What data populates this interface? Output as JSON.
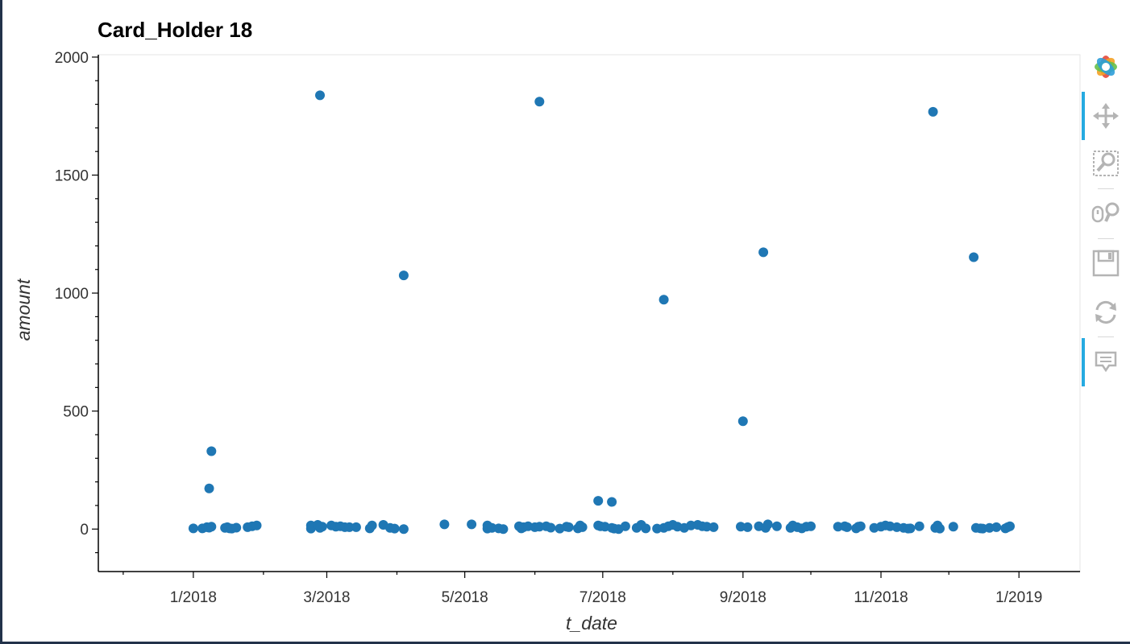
{
  "toolbar": {
    "items": [
      {
        "icon": "bokeh-logo-icon"
      },
      {
        "icon": "pan-icon",
        "active": true
      },
      {
        "icon": "box-zoom-icon"
      },
      {
        "icon": "wheel-zoom-icon"
      },
      {
        "icon": "save-icon"
      },
      {
        "icon": "reset-icon"
      },
      {
        "icon": "hover-icon",
        "active": true
      }
    ],
    "active_color": "#26aae1"
  },
  "chart_data": {
    "type": "scatter",
    "title": "Card_Holder 18",
    "xlabel": "t_date",
    "ylabel": "amount",
    "x_ticks": [
      "1/2018",
      "3/2018",
      "5/2018",
      "7/2018",
      "9/2018",
      "11/2018",
      "1/2019"
    ],
    "y_ticks": [
      "0",
      "500",
      "1000",
      "1500",
      "2000"
    ],
    "xlim": [
      "2017-11-20",
      "2019-01-28"
    ],
    "ylim": [
      -180,
      2010
    ],
    "grid": false,
    "marker_color": "#1f77b4",
    "x": [
      "2018-01-01",
      "2018-01-05",
      "2018-01-07",
      "2018-01-08",
      "2018-01-09",
      "2018-01-15",
      "2018-01-16",
      "2018-01-17",
      "2018-01-18",
      "2018-01-20",
      "2018-01-25",
      "2018-01-27",
      "2018-01-29",
      "2018-02-22",
      "2018-02-22",
      "2018-02-25",
      "2018-02-27",
      "2018-02-26",
      "2018-03-03",
      "2018-03-05",
      "2018-03-07",
      "2018-03-09",
      "2018-03-11",
      "2018-03-14",
      "2018-03-20",
      "2018-03-21",
      "2018-03-26",
      "2018-03-29",
      "2018-03-31",
      "2018-04-04",
      "2018-04-22",
      "2018-05-04",
      "2018-05-11",
      "2018-05-11",
      "2018-05-13",
      "2018-05-16",
      "2018-05-18",
      "2018-05-25",
      "2018-05-26",
      "2018-05-27",
      "2018-05-29",
      "2018-06-01",
      "2018-06-03",
      "2018-06-06",
      "2018-06-08",
      "2018-06-12",
      "2018-06-15",
      "2018-06-16",
      "2018-06-20",
      "2018-06-21",
      "2018-06-22",
      "2018-06-29",
      "2018-06-30",
      "2018-07-02",
      "2018-07-05",
      "2018-07-06",
      "2018-07-08",
      "2018-07-11",
      "2018-07-16",
      "2018-07-18",
      "2018-07-20",
      "2018-07-25",
      "2018-07-28",
      "2018-07-30",
      "2018-08-01",
      "2018-08-03",
      "2018-08-06",
      "2018-08-09",
      "2018-08-12",
      "2018-08-14",
      "2018-08-16",
      "2018-08-19",
      "2018-08-31",
      "2018-09-03",
      "2018-09-08",
      "2018-09-11",
      "2018-09-12",
      "2018-09-16",
      "2018-09-22",
      "2018-09-23",
      "2018-09-25",
      "2018-09-27",
      "2018-09-29",
      "2018-10-01",
      "2018-10-13",
      "2018-10-16",
      "2018-10-17",
      "2018-10-21",
      "2018-10-22",
      "2018-10-23",
      "2018-10-29",
      "2018-11-01",
      "2018-11-03",
      "2018-11-05",
      "2018-11-08",
      "2018-11-11",
      "2018-11-13",
      "2018-11-14",
      "2018-11-18",
      "2018-11-25",
      "2018-11-26",
      "2018-11-27",
      "2018-12-03",
      "2018-12-13",
      "2018-12-15",
      "2018-12-16",
      "2018-12-19",
      "2018-12-22",
      "2018-12-26",
      "2018-12-27",
      "2018-12-28",
      "2018-01-08",
      "2018-01-09",
      "2018-02-26",
      "2018-04-04",
      "2018-06-03",
      "2018-07-28",
      "2018-09-01",
      "2018-09-10",
      "2018-11-24",
      "2018-12-12",
      "2018-06-29",
      "2018-07-05"
    ],
    "y": [
      3,
      3,
      8,
      6,
      10,
      5,
      8,
      3,
      2,
      6,
      8,
      12,
      15,
      2,
      15,
      18,
      10,
      5,
      15,
      10,
      12,
      8,
      8,
      8,
      3,
      15,
      18,
      5,
      2,
      0,
      20,
      20,
      15,
      2,
      5,
      3,
      0,
      12,
      3,
      8,
      12,
      8,
      10,
      12,
      6,
      2,
      10,
      8,
      3,
      15,
      8,
      15,
      12,
      10,
      5,
      2,
      0,
      12,
      5,
      18,
      3,
      2,
      5,
      12,
      18,
      10,
      5,
      15,
      18,
      12,
      10,
      8,
      10,
      8,
      12,
      5,
      20,
      12,
      5,
      15,
      8,
      3,
      10,
      12,
      10,
      12,
      8,
      3,
      10,
      12,
      5,
      10,
      15,
      12,
      8,
      5,
      2,
      3,
      12,
      5,
      15,
      2,
      10,
      5,
      3,
      2,
      5,
      8,
      3,
      8,
      12,
      172,
      330,
      1838,
      1075,
      1811,
      972,
      457,
      1173,
      1768,
      1152,
      120,
      115
    ]
  }
}
